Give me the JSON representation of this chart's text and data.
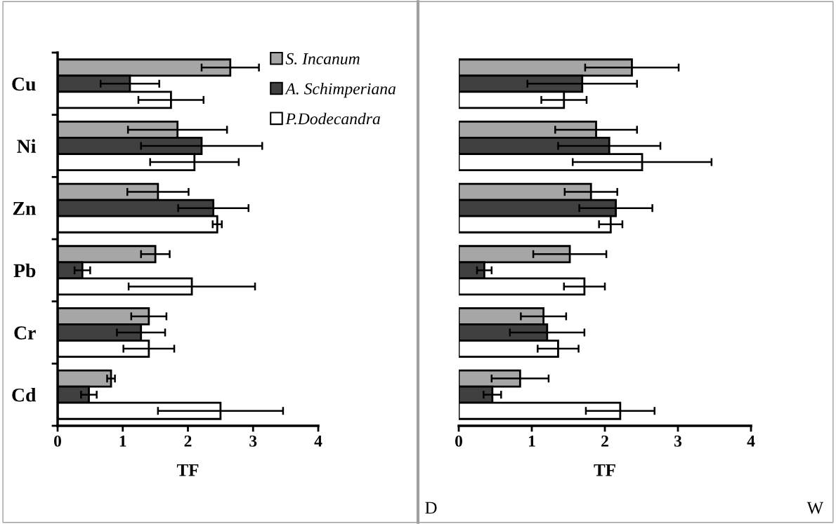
{
  "chart_data": [
    {
      "type": "bar",
      "orientation": "horizontal",
      "xlabel": "TF",
      "categories": [
        "Cu",
        "Ni",
        "Zn",
        "Pb",
        "Cr",
        "Cd"
      ],
      "xlim": [
        0,
        4
      ],
      "xticks": [
        0,
        1,
        2,
        3,
        4
      ],
      "grid": false,
      "legend": "top right",
      "annotations": [
        "D"
      ],
      "series": [
        {
          "name": "S. Incanum",
          "color": "#a6a6a6",
          "values": [
            2.65,
            1.84,
            1.54,
            1.5,
            1.4,
            0.82
          ],
          "errors": [
            0.44,
            0.76,
            0.47,
            0.22,
            0.27,
            0.06
          ]
        },
        {
          "name": "A. Schimperiana",
          "color": "#404040",
          "values": [
            1.11,
            2.21,
            2.39,
            0.38,
            1.28,
            0.48
          ],
          "errors": [
            0.45,
            0.93,
            0.54,
            0.12,
            0.37,
            0.12
          ]
        },
        {
          "name": "P.Dodecandra",
          "color": "#ffffff",
          "values": [
            1.74,
            2.1,
            2.45,
            2.06,
            1.4,
            2.5
          ],
          "errors": [
            0.5,
            0.68,
            0.07,
            0.97,
            0.39,
            0.96
          ]
        }
      ]
    },
    {
      "type": "bar",
      "orientation": "horizontal",
      "xlabel": "TF",
      "categories": [
        null,
        null,
        null,
        null,
        null,
        null
      ],
      "xlim": [
        0,
        4
      ],
      "xticks": [
        0,
        1,
        2,
        3,
        4
      ],
      "grid": false,
      "tick_labels": "x",
      "annotations": [
        "W"
      ],
      "series": [
        {
          "color": "#a6a6a6",
          "values": [
            2.37,
            1.88,
            1.81,
            1.52,
            1.16,
            0.84
          ],
          "errors": [
            0.64,
            0.56,
            0.36,
            0.5,
            0.31,
            0.39
          ]
        },
        {
          "color": "#404040",
          "values": [
            1.69,
            2.06,
            2.15,
            0.35,
            1.21,
            0.46
          ],
          "errors": [
            0.75,
            0.7,
            0.5,
            0.1,
            0.51,
            0.12
          ]
        },
        {
          "color": "#ffffff",
          "values": [
            1.44,
            2.51,
            2.08,
            1.72,
            1.36,
            2.21
          ],
          "errors": [
            0.31,
            0.95,
            0.16,
            0.28,
            0.28,
            0.47
          ]
        }
      ]
    }
  ]
}
